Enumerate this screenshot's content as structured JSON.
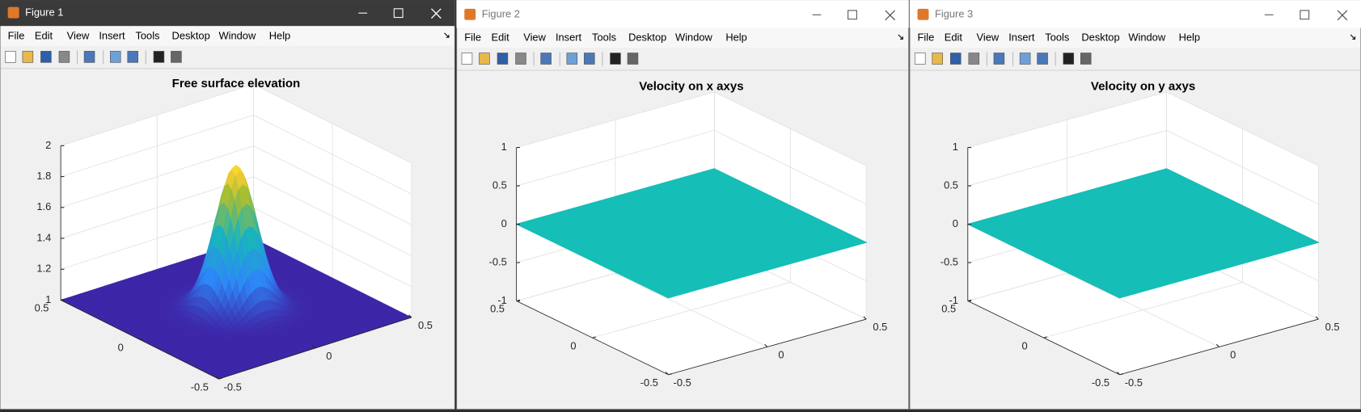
{
  "windows": [
    {
      "title": "Figure 1",
      "menu": [
        "File",
        "Edit",
        "View",
        "Insert",
        "Tools",
        "Desktop",
        "Window",
        "Help"
      ],
      "chart": {
        "type": "surface",
        "title": "Free surface elevation",
        "xlim": [
          -0.5,
          0.5
        ],
        "xticks": [
          -0.5,
          0,
          0.5
        ],
        "ylim": [
          -0.5,
          0.5
        ],
        "yticks": [
          -0.5,
          0,
          0.5
        ],
        "zlim": [
          1,
          2
        ],
        "zticks": [
          1,
          1.2,
          1.4,
          1.6,
          1.8,
          2
        ],
        "grid": true,
        "colormap": "parula",
        "surface": {
          "base": 1,
          "peak": 1.93
        }
      }
    },
    {
      "title": "Figure 2",
      "menu": [
        "File",
        "Edit",
        "View",
        "Insert",
        "Tools",
        "Desktop",
        "Window",
        "Help"
      ],
      "chart": {
        "type": "plane",
        "title": "Velocity on x axys",
        "xlim": [
          -0.5,
          0.5
        ],
        "xticks": [
          -0.5,
          0,
          0.5
        ],
        "ylim": [
          -0.5,
          0.5
        ],
        "yticks": [
          -0.5,
          0,
          0.5
        ],
        "zlim": [
          -1,
          1
        ],
        "zticks": [
          -1,
          -0.5,
          0,
          0.5,
          1
        ],
        "grid": true,
        "color": "#15beb7",
        "surface": {
          "value": 0
        }
      }
    },
    {
      "title": "Figure 3",
      "menu": [
        "File",
        "Edit",
        "View",
        "Insert",
        "Tools",
        "Desktop",
        "Window",
        "Help"
      ],
      "chart": {
        "type": "plane",
        "title": "Velocity on y axys",
        "xlim": [
          -0.5,
          0.5
        ],
        "xticks": [
          -0.5,
          0,
          0.5
        ],
        "ylim": [
          -0.5,
          0.5
        ],
        "yticks": [
          -0.5,
          0,
          0.5
        ],
        "zlim": [
          -1,
          1
        ],
        "zticks": [
          -1,
          -0.5,
          0,
          0.5,
          1
        ],
        "grid": true,
        "color": "#15beb7",
        "surface": {
          "value": 0
        }
      }
    }
  ]
}
